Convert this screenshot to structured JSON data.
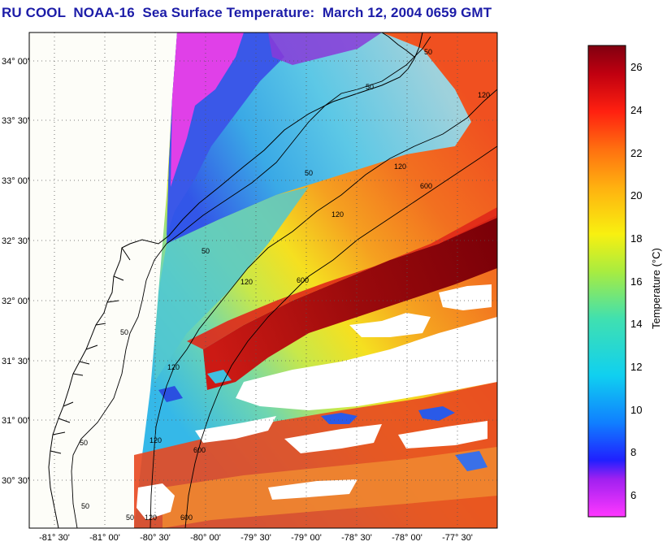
{
  "title": "RU COOL  NOAA-16  Sea Surface Temperature:  March 12, 2004 0659 GMT",
  "map": {
    "lat_labels": [
      "34° 00'",
      "33° 30'",
      "33° 00'",
      "32° 30'",
      "32° 00'",
      "31° 30'",
      "31° 00'",
      "30° 30'"
    ],
    "lon_labels": [
      "-81° 30'",
      "-81° 00'",
      "-80° 30'",
      "-80° 00'",
      "-79° 30'",
      "-79° 00'",
      "-78° 30'",
      "-78° 00'",
      "-77° 30'"
    ],
    "contour_labels": [
      "50",
      "50",
      "50",
      "50",
      "50",
      "50",
      "50",
      "120",
      "120",
      "120",
      "120",
      "120",
      "120",
      "600",
      "600",
      "600",
      "120",
      "600",
      "50"
    ],
    "colors": {
      "land": "#fdfdf8",
      "cloud": "#ffffff",
      "contour": "#000000",
      "grid": "#333333"
    }
  },
  "colorbar": {
    "label": "Temperature (°C)",
    "ticks": [
      "26",
      "24",
      "22",
      "20",
      "18",
      "16",
      "14",
      "12",
      "10",
      "8",
      "6"
    ],
    "range": [
      5,
      27
    ]
  },
  "chart_data": {
    "type": "heatmap",
    "title": "RU COOL  NOAA-16  Sea Surface Temperature:  March 12, 2004 0659 GMT",
    "xlabel": "",
    "ylabel": "",
    "x_ticks": [
      "-81° 30'",
      "-81° 00'",
      "-80° 30'",
      "-80° 00'",
      "-79° 30'",
      "-79° 00'",
      "-78° 30'",
      "-78° 00'",
      "-77° 30'"
    ],
    "y_ticks": [
      "34° 00'",
      "33° 30'",
      "33° 00'",
      "32° 30'",
      "32° 00'",
      "31° 30'",
      "31° 00'",
      "30° 30'"
    ],
    "xlim": [
      -81.6,
      -77.2
    ],
    "ylim": [
      30.2,
      34.2
    ],
    "colorbar_range": [
      5,
      27
    ],
    "colorbar_unit": "Temperature (°C)",
    "bathymetry_contours_m": [
      50,
      120,
      600
    ],
    "grid": true
  }
}
